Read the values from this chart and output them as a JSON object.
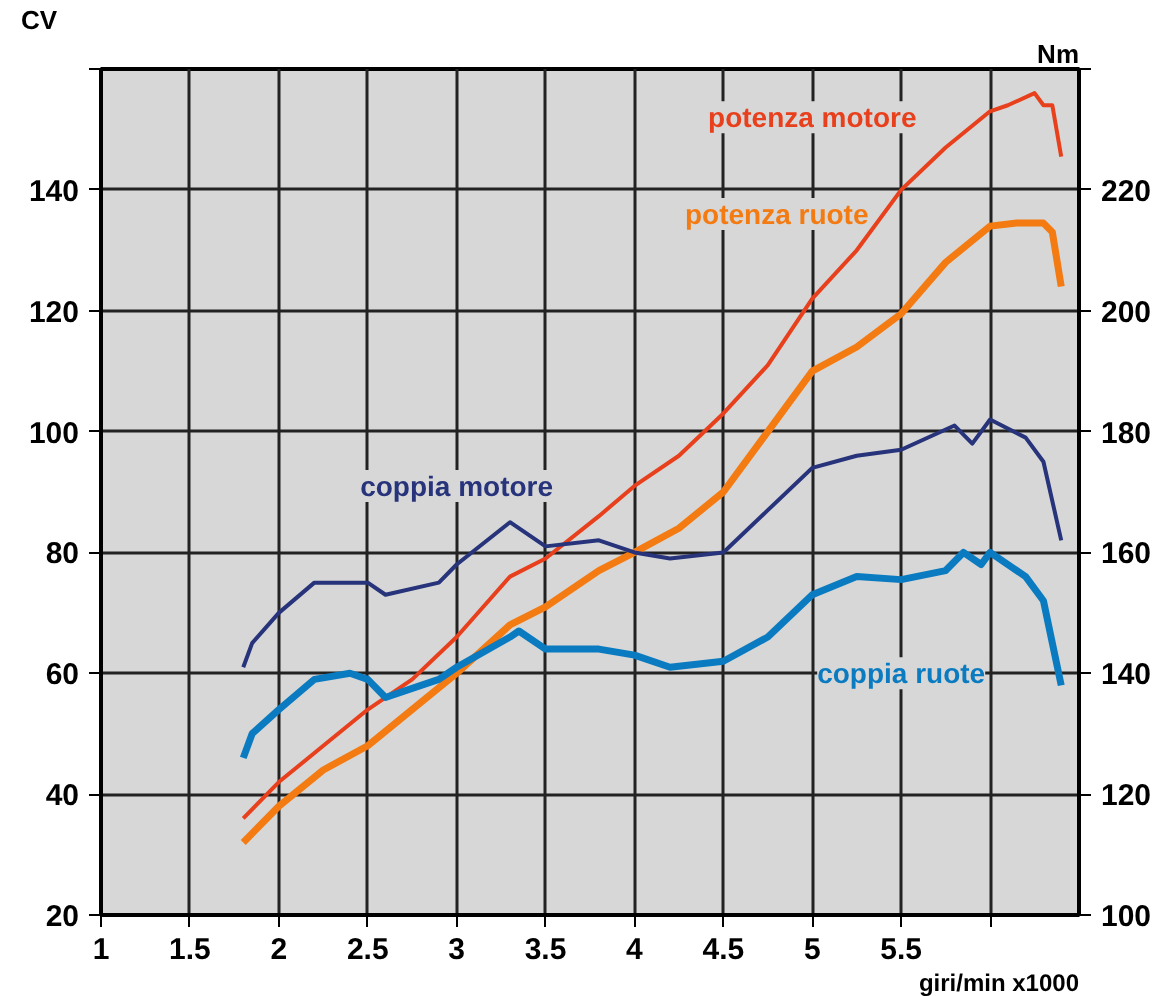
{
  "chart_data": {
    "type": "line",
    "xlabel": "giri/min x1000",
    "ylabel": "CV",
    "y2label": "Nm",
    "xlim": [
      1,
      6.5
    ],
    "xticks": [
      1,
      1.5,
      2,
      2.5,
      3,
      3.5,
      4,
      4.5,
      5,
      5.5,
      {
        "value": 6,
        "label": null
      }
    ],
    "ylim": [
      20,
      160
    ],
    "yticks": [
      20,
      40,
      60,
      80,
      100,
      120,
      140,
      {
        "value": 160,
        "label": null
      }
    ],
    "y2lim": [
      100,
      240
    ],
    "y2ticks": [
      100,
      120,
      140,
      160,
      180,
      200,
      220,
      {
        "value": 240,
        "label": null
      }
    ],
    "grid": true,
    "line_style": "solid",
    "marker": "none",
    "series": [
      {
        "name": "potenza motore",
        "color": "#e8401c",
        "x": [
          1.8,
          2,
          2.25,
          2.5,
          2.75,
          3,
          3.3,
          3.5,
          3.8,
          4,
          4.25,
          4.5,
          4.75,
          5,
          5.25,
          5.5,
          5.75,
          6,
          6.1,
          6.25,
          6.3,
          6.35,
          6.4
        ],
        "values": [
          36,
          42,
          48,
          54,
          59,
          66,
          76,
          79,
          86,
          91,
          96,
          103,
          111,
          122,
          130,
          140,
          147,
          153,
          154,
          156,
          154,
          154,
          145.5
        ]
      },
      {
        "name": "potenza ruote",
        "color": "#f47a12",
        "x": [
          1.8,
          2,
          2.25,
          2.5,
          2.75,
          3,
          3.3,
          3.5,
          3.8,
          4,
          4.25,
          4.5,
          4.75,
          5,
          5.25,
          5.5,
          5.75,
          6,
          6.15,
          6.3,
          6.35,
          6.4
        ],
        "values": [
          32,
          38,
          44,
          48,
          54,
          60,
          68,
          71,
          77,
          80,
          84,
          90,
          100,
          110,
          114,
          119.5,
          128,
          134,
          134.5,
          134.5,
          133,
          124
        ]
      },
      {
        "name": "coppia motore",
        "color": "#27337a",
        "axis": "y2",
        "x": [
          1.8,
          1.85,
          2,
          2.2,
          2.5,
          2.6,
          2.9,
          3,
          3.3,
          3.5,
          3.8,
          4,
          4.2,
          4.5,
          4.75,
          5,
          5.25,
          5.5,
          5.8,
          5.9,
          6,
          6.2,
          6.3,
          6.4
        ],
        "values": [
          141,
          145,
          150,
          155,
          155,
          153,
          155,
          158,
          165,
          161,
          162,
          160,
          159,
          160,
          167,
          174,
          176,
          177,
          181,
          178,
          182,
          179,
          175,
          162
        ]
      },
      {
        "name": "coppia ruote",
        "color": "#0b7bc1",
        "axis": "y2",
        "x": [
          1.8,
          1.85,
          2,
          2.2,
          2.4,
          2.5,
          2.6,
          2.7,
          2.9,
          3,
          3.3,
          3.35,
          3.5,
          3.8,
          4,
          4.2,
          4.5,
          4.75,
          5,
          5.25,
          5.5,
          5.75,
          5.85,
          5.95,
          6,
          6.2,
          6.3,
          6.4
        ],
        "values": [
          126,
          130,
          134,
          139,
          140,
          139,
          136,
          137,
          139,
          141,
          146,
          147,
          144,
          144,
          143,
          141,
          142,
          146,
          153,
          156,
          155.5,
          157,
          160,
          158,
          160,
          156,
          152,
          138
        ]
      }
    ]
  }
}
